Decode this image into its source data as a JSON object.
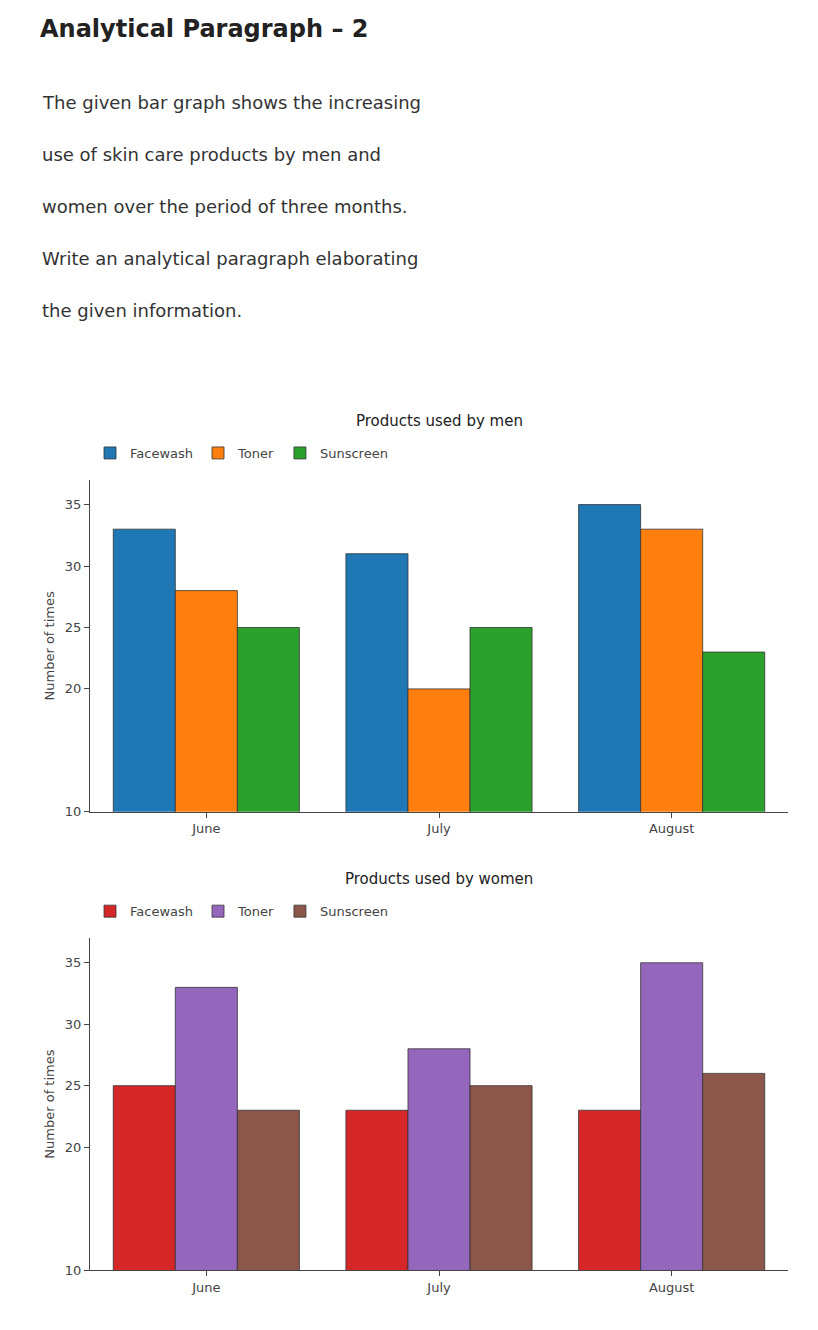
{
  "title": "Analytical Paragraph – 2",
  "annotations": [
    "The given bar graph shows the increasing",
    "use of skin care products by men and",
    "women over the period of three months.",
    "Write an analytical paragraph elaborating",
    "the given information."
  ],
  "chart_data": [
    {
      "type": "bar",
      "title": "Products used by men",
      "categories": [
        "June",
        "July",
        "August"
      ],
      "series": [
        {
          "name": "Facewash",
          "values": [
            33,
            31,
            35
          ]
        },
        {
          "name": "Toner",
          "values": [
            28,
            20,
            33
          ]
        },
        {
          "name": "Sunscreen",
          "values": [
            25,
            25,
            23
          ]
        }
      ],
      "ylabel": "Number of times",
      "ylim": [
        10,
        37
      ],
      "yticks": [
        10,
        20,
        25,
        30,
        35
      ],
      "grid": false,
      "legend": "upper left"
    },
    {
      "type": "bar",
      "title": "Products used by women",
      "categories": [
        "June",
        "July",
        "August"
      ],
      "series": [
        {
          "name": "Facewash",
          "values": [
            25,
            23,
            23
          ]
        },
        {
          "name": "Toner",
          "values": [
            33,
            28,
            35
          ]
        },
        {
          "name": "Sunscreen",
          "values": [
            23,
            25,
            26
          ]
        }
      ],
      "ylabel": "Number of times",
      "ylim": [
        10,
        37
      ],
      "yticks": [
        10,
        20,
        25,
        30,
        35
      ],
      "grid": false,
      "legend": "upper left"
    }
  ]
}
